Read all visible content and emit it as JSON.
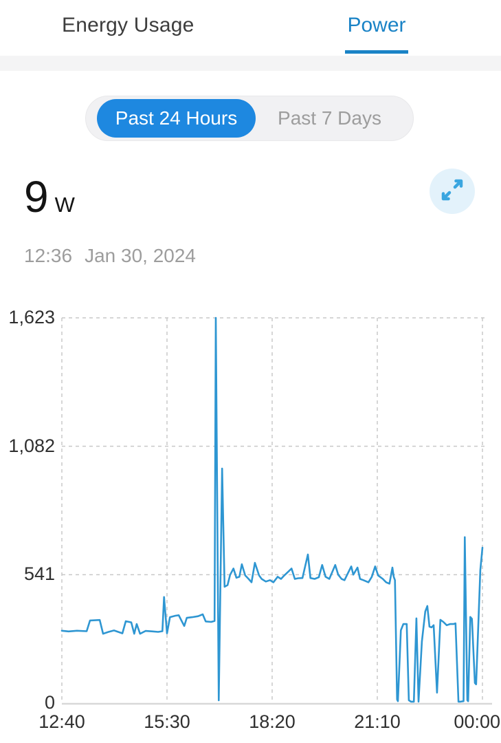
{
  "header": {
    "title": "Energy Usage",
    "active_tab": "Power"
  },
  "range_toggle": {
    "selected": "Past 24 Hours",
    "options": [
      "Past 24 Hours",
      "Past 7 Days"
    ]
  },
  "reading": {
    "value": "9",
    "unit": "W",
    "time": "12:36",
    "date": "Jan 30, 2024"
  },
  "icons": {
    "expand": "expand-diagonal-arrows"
  },
  "colors": {
    "tab_active": "#1a83c6",
    "toggle_selected_bg": "#1e88e0",
    "line": "#2e96d2",
    "grid": "#c8c8c8",
    "axis_line": "#d8d8d8",
    "muted_text": "#9d9d9d",
    "expand_bg": "#e3f2fb",
    "expand_arrow": "#3aa6e0"
  },
  "chart_data": {
    "type": "line",
    "title": "Power (W) over past 24 hours",
    "unit": "W",
    "grid": "dashed",
    "legend": "none",
    "x_ticks": [
      "12:40",
      "15:30",
      "18:20",
      "21:10",
      "00:00"
    ],
    "y_ticks": [
      "0",
      "541",
      "1,082",
      "1,623"
    ],
    "y_tick_values": [
      0,
      541,
      1082,
      1623
    ],
    "ylim": [
      0,
      1623
    ],
    "x_is_fraction_of_range": "x values are 0..1 across 12:40 -> 00:00",
    "points": [
      [
        0.0,
        305
      ],
      [
        0.016,
        302
      ],
      [
        0.036,
        305
      ],
      [
        0.059,
        303
      ],
      [
        0.067,
        348
      ],
      [
        0.09,
        350
      ],
      [
        0.098,
        292
      ],
      [
        0.111,
        300
      ],
      [
        0.124,
        306
      ],
      [
        0.134,
        300
      ],
      [
        0.144,
        294
      ],
      [
        0.152,
        345
      ],
      [
        0.165,
        340
      ],
      [
        0.172,
        292
      ],
      [
        0.178,
        333
      ],
      [
        0.186,
        292
      ],
      [
        0.199,
        304
      ],
      [
        0.216,
        302
      ],
      [
        0.229,
        300
      ],
      [
        0.239,
        303
      ],
      [
        0.243,
        447
      ],
      [
        0.25,
        294
      ],
      [
        0.257,
        362
      ],
      [
        0.27,
        368
      ],
      [
        0.278,
        370
      ],
      [
        0.284,
        349
      ],
      [
        0.291,
        325
      ],
      [
        0.297,
        359
      ],
      [
        0.31,
        362
      ],
      [
        0.324,
        366
      ],
      [
        0.335,
        374
      ],
      [
        0.342,
        344
      ],
      [
        0.355,
        342
      ],
      [
        0.363,
        346
      ],
      [
        0.366,
        1623
      ],
      [
        0.373,
        12
      ],
      [
        0.381,
        988
      ],
      [
        0.387,
        490
      ],
      [
        0.394,
        497
      ],
      [
        0.4,
        540
      ],
      [
        0.408,
        567
      ],
      [
        0.415,
        528
      ],
      [
        0.422,
        532
      ],
      [
        0.428,
        585
      ],
      [
        0.436,
        538
      ],
      [
        0.444,
        523
      ],
      [
        0.451,
        509
      ],
      [
        0.459,
        591
      ],
      [
        0.469,
        538
      ],
      [
        0.475,
        523
      ],
      [
        0.485,
        512
      ],
      [
        0.495,
        518
      ],
      [
        0.503,
        509
      ],
      [
        0.513,
        532
      ],
      [
        0.521,
        523
      ],
      [
        0.529,
        538
      ],
      [
        0.546,
        567
      ],
      [
        0.554,
        523
      ],
      [
        0.562,
        526
      ],
      [
        0.572,
        527
      ],
      [
        0.585,
        626
      ],
      [
        0.591,
        527
      ],
      [
        0.601,
        523
      ],
      [
        0.611,
        530
      ],
      [
        0.619,
        582
      ],
      [
        0.627,
        532
      ],
      [
        0.636,
        523
      ],
      [
        0.65,
        582
      ],
      [
        0.657,
        541
      ],
      [
        0.665,
        523
      ],
      [
        0.672,
        518
      ],
      [
        0.688,
        576
      ],
      [
        0.693,
        541
      ],
      [
        0.703,
        571
      ],
      [
        0.709,
        523
      ],
      [
        0.717,
        518
      ],
      [
        0.729,
        509
      ],
      [
        0.737,
        532
      ],
      [
        0.745,
        576
      ],
      [
        0.752,
        538
      ],
      [
        0.763,
        523
      ],
      [
        0.771,
        509
      ],
      [
        0.779,
        503
      ],
      [
        0.786,
        571
      ],
      [
        0.789,
        532
      ],
      [
        0.792,
        518
      ],
      [
        0.797,
        15
      ],
      [
        0.799,
        8
      ],
      [
        0.806,
        307
      ],
      [
        0.812,
        333
      ],
      [
        0.82,
        333
      ],
      [
        0.825,
        12
      ],
      [
        0.83,
        6
      ],
      [
        0.837,
        6
      ],
      [
        0.843,
        357
      ],
      [
        0.848,
        6
      ],
      [
        0.856,
        260
      ],
      [
        0.864,
        386
      ],
      [
        0.869,
        409
      ],
      [
        0.874,
        322
      ],
      [
        0.879,
        319
      ],
      [
        0.884,
        328
      ],
      [
        0.892,
        44
      ],
      [
        0.9,
        351
      ],
      [
        0.907,
        342
      ],
      [
        0.915,
        328
      ],
      [
        0.923,
        333
      ],
      [
        0.931,
        333
      ],
      [
        0.936,
        336
      ],
      [
        0.943,
        6
      ],
      [
        0.948,
        6
      ],
      [
        0.955,
        8
      ],
      [
        0.958,
        699
      ],
      [
        0.964,
        12
      ],
      [
        0.966,
        8
      ],
      [
        0.971,
        363
      ],
      [
        0.975,
        355
      ],
      [
        0.982,
        85
      ],
      [
        0.985,
        79
      ],
      [
        0.995,
        560
      ],
      [
        1.0,
        655
      ]
    ]
  }
}
